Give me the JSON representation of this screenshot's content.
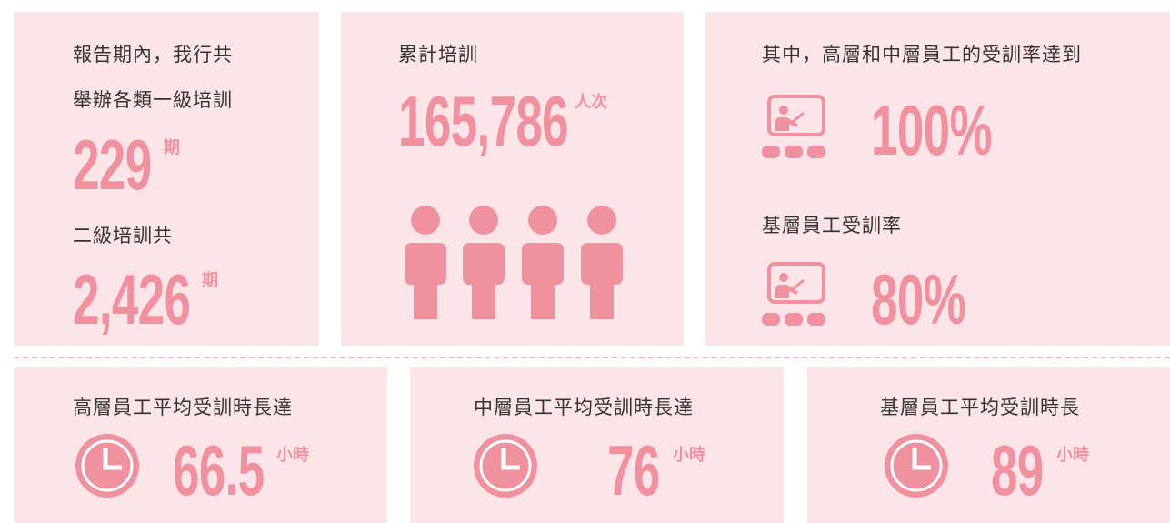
{
  "summary": {
    "intro_line1": "報告期內，我行共",
    "intro_line2": "舉辦各類一級培訓",
    "level1_count": "229",
    "level1_unit": "期",
    "level2_label": "二級培訓共",
    "level2_count": "2,426",
    "level2_unit": "期"
  },
  "total": {
    "label": "累計培訓",
    "value": "165,786",
    "unit": "人次"
  },
  "rates": {
    "senior_label": "其中，高層和中層員工的受訓率達到",
    "senior_value": "100%",
    "base_label": "基層員工受訓率",
    "base_value": "80%"
  },
  "hours": [
    {
      "label": "高層員工平均受訓時長達",
      "value": "66.5",
      "unit": "小時"
    },
    {
      "label": "中層員工平均受訓時長達",
      "value": "76",
      "unit": "小時"
    },
    {
      "label": "基層員工平均受訓時長",
      "value": "89",
      "unit": "小時"
    }
  ]
}
